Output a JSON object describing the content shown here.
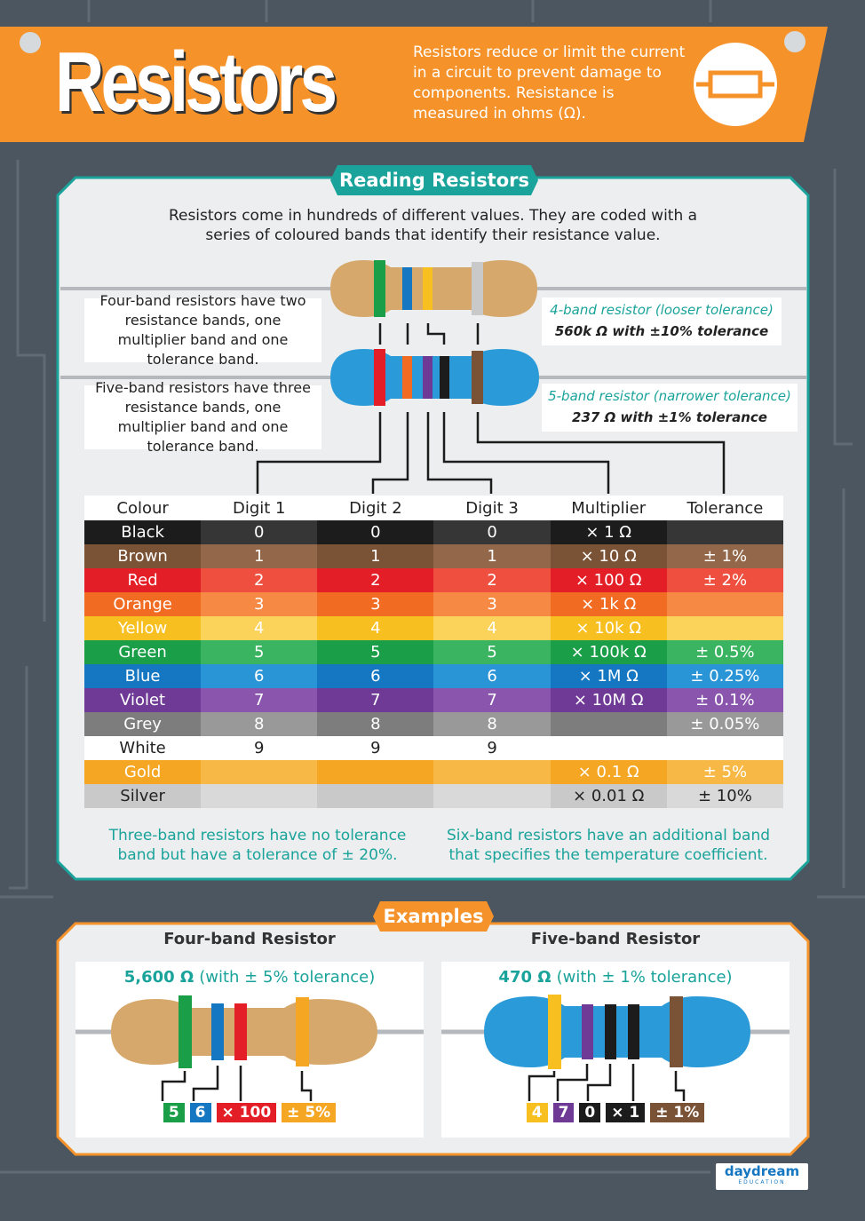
{
  "header": {
    "title": "Resistors",
    "description": "Resistors reduce or limit the current in a circuit to prevent damage to components. Resistance is measured in ohms (Ω)."
  },
  "reading": {
    "heading": "Reading Resistors",
    "intro": "Resistors come in hundreds of different values. They are coded with a series of coloured bands that identify their resistance value.",
    "four_band_note": "Four-band resistors have two resistance bands, one multiplier band and one tolerance band.",
    "five_band_note": "Five-band resistors have three resistance bands, one multiplier band and one tolerance band.",
    "four_band_label": {
      "title": "4-band resistor (looser tolerance)",
      "detail": "560k Ω with ±10% tolerance"
    },
    "five_band_label": {
      "title": "5-band resistor (narrower tolerance)",
      "detail": "237 Ω with ±1% tolerance"
    },
    "table": {
      "columns": [
        "Colour",
        "Digit 1",
        "Digit 2",
        "Digit 3",
        "Multiplier",
        "Tolerance"
      ],
      "rows": [
        [
          "Black",
          "0",
          "0",
          "0",
          "× 1 Ω",
          null
        ],
        [
          "Brown",
          "1",
          "1",
          "1",
          "× 10 Ω",
          "± 1%"
        ],
        [
          "Red",
          "2",
          "2",
          "2",
          "× 100 Ω",
          "± 2%"
        ],
        [
          "Orange",
          "3",
          "3",
          "3",
          "× 1k Ω",
          null
        ],
        [
          "Yellow",
          "4",
          "4",
          "4",
          "× 10k Ω",
          null
        ],
        [
          "Green",
          "5",
          "5",
          "5",
          "× 100k Ω",
          "± 0.5%"
        ],
        [
          "Blue",
          "6",
          "6",
          "6",
          "× 1M Ω",
          "± 0.25%"
        ],
        [
          "Violet",
          "7",
          "7",
          "7",
          "× 10M Ω",
          "± 0.1%"
        ],
        [
          "Grey",
          "8",
          "8",
          "8",
          null,
          "± 0.05%"
        ],
        [
          "White",
          "9",
          "9",
          "9",
          null,
          null
        ],
        [
          "Gold",
          null,
          null,
          null,
          "× 0.1 Ω",
          "± 5%"
        ],
        [
          "Silver",
          null,
          null,
          null,
          "× 0.01 Ω",
          "± 10%"
        ]
      ],
      "row_colors": [
        {
          "dark": "#1c1c1c",
          "light": "#363636",
          "text": "#ffffff"
        },
        {
          "dark": "#7a5236",
          "light": "#93684a",
          "text": "#ffffff"
        },
        {
          "dark": "#e41e26",
          "light": "#ef4f3e",
          "text": "#ffffff"
        },
        {
          "dark": "#f26b22",
          "light": "#f68a45",
          "text": "#ffffff"
        },
        {
          "dark": "#f7c020",
          "light": "#fbd35a",
          "text": "#ffffff"
        },
        {
          "dark": "#1a9e48",
          "light": "#3bb461",
          "text": "#ffffff"
        },
        {
          "dark": "#1577c1",
          "light": "#2a95d6",
          "text": "#ffffff"
        },
        {
          "dark": "#6e3a96",
          "light": "#8a55ad",
          "text": "#ffffff"
        },
        {
          "dark": "#7d7d7d",
          "light": "#999999",
          "text": "#ffffff"
        },
        {
          "dark": "#ffffff",
          "light": "#ffffff",
          "text": "#222222"
        },
        {
          "dark": "#f5a623",
          "light": "#f8b845",
          "text": "#ffffff"
        },
        {
          "dark": "#c9c9c9",
          "light": "#d9d9d9",
          "text": "#222222"
        }
      ]
    },
    "three_band_note": "Three-band resistors have no tolerance band but have a tolerance of ± 20%.",
    "six_band_note": "Six-band resistors have an additional band that specifies the temperature coefficient."
  },
  "examples": {
    "heading": "Examples",
    "items": [
      {
        "title": "Four-band Resistor",
        "value": "5,600 Ω",
        "tolerance": "(with ± 5% tolerance)",
        "bands": [
          {
            "label": "5",
            "color": "#1a9e48"
          },
          {
            "label": "6",
            "color": "#1577c1"
          },
          {
            "label": "× 100",
            "color": "#e41e26"
          },
          {
            "label": "± 5%",
            "color": "#f5a623"
          }
        ]
      },
      {
        "title": "Five-band Resistor",
        "value": "470 Ω",
        "tolerance": "(with ± 1% tolerance)",
        "bands": [
          {
            "label": "4",
            "color": "#f7c020"
          },
          {
            "label": "7",
            "color": "#6e3a96"
          },
          {
            "label": "0",
            "color": "#1c1c1c"
          },
          {
            "label": "× 1",
            "color": "#1c1c1c"
          },
          {
            "label": "± 1%",
            "color": "#7a5236"
          }
        ]
      }
    ]
  },
  "footer": {
    "brand": "daydream",
    "tagline": "EDUCATION"
  }
}
